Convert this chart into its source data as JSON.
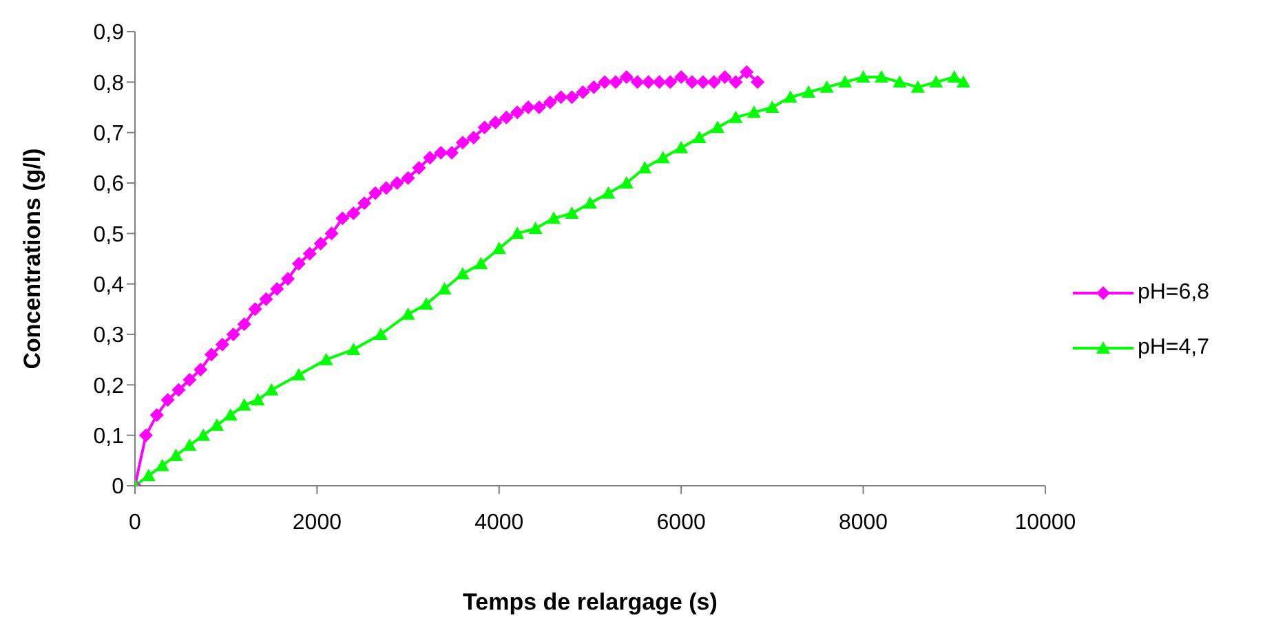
{
  "chart_data": {
    "type": "line",
    "xlabel": "Temps de relargage (s)",
    "ylabel": "Concentrations (g/l)",
    "xlim": [
      0,
      10000
    ],
    "xticks": [
      0,
      2000,
      4000,
      6000,
      8000,
      10000
    ],
    "ylim": [
      0,
      0.9
    ],
    "yticks": [
      0,
      {
        "value": 0.1,
        "label": "0,1"
      },
      {
        "value": 0.2,
        "label": "0,2"
      },
      {
        "value": 0.3,
        "label": "0,3"
      },
      {
        "value": 0.4,
        "label": "0,4"
      },
      {
        "value": 0.5,
        "label": "0,5"
      },
      {
        "value": 0.6,
        "label": "0,6"
      },
      {
        "value": 0.7,
        "label": "0,7"
      },
      {
        "value": 0.8,
        "label": "0,8"
      },
      {
        "value": 0.9,
        "label": "0,9"
      }
    ],
    "grid": false,
    "legend": "right",
    "series": [
      {
        "name": "pH=6,8",
        "color": "#ff00ff",
        "marker": "diamond",
        "x": [
          0,
          120,
          240,
          360,
          480,
          600,
          720,
          840,
          960,
          1080,
          1200,
          1320,
          1440,
          1560,
          1680,
          1800,
          1920,
          2040,
          2160,
          2280,
          2400,
          2520,
          2640,
          2760,
          2880,
          3000,
          3120,
          3240,
          3360,
          3480,
          3600,
          3720,
          3840,
          3960,
          4080,
          4200,
          4320,
          4440,
          4560,
          4680,
          4800,
          4920,
          5040,
          5160,
          5280,
          5400,
          5520,
          5640,
          5760,
          5880,
          6000,
          6120,
          6240,
          6360,
          6480,
          6600,
          6720,
          6840
        ],
        "values": [
          0,
          0.1,
          0.14,
          0.17,
          0.19,
          0.21,
          0.23,
          0.26,
          0.28,
          0.3,
          0.32,
          0.35,
          0.37,
          0.39,
          0.41,
          0.44,
          0.46,
          0.48,
          0.5,
          0.53,
          0.54,
          0.56,
          0.58,
          0.59,
          0.6,
          0.61,
          0.63,
          0.65,
          0.66,
          0.66,
          0.68,
          0.69,
          0.71,
          0.72,
          0.73,
          0.74,
          0.75,
          0.75,
          0.76,
          0.77,
          0.77,
          0.78,
          0.79,
          0.8,
          0.8,
          0.81,
          0.8,
          0.8,
          0.8,
          0.8,
          0.81,
          0.8,
          0.8,
          0.8,
          0.81,
          0.8,
          0.82,
          0.8
        ]
      },
      {
        "name": "pH=4,7",
        "color": "#00ff00",
        "marker": "triangle",
        "x": [
          0,
          150,
          300,
          450,
          600,
          750,
          900,
          1050,
          1200,
          1350,
          1500,
          1800,
          2100,
          2400,
          2700,
          3000,
          3200,
          3400,
          3600,
          3800,
          4000,
          4200,
          4400,
          4600,
          4800,
          5000,
          5200,
          5400,
          5600,
          5800,
          6000,
          6200,
          6400,
          6600,
          6800,
          7000,
          7200,
          7400,
          7600,
          7800,
          8000,
          8200,
          8400,
          8600,
          8800,
          9000,
          9100
        ],
        "values": [
          0,
          0.02,
          0.04,
          0.06,
          0.08,
          0.1,
          0.12,
          0.14,
          0.16,
          0.17,
          0.19,
          0.22,
          0.25,
          0.27,
          0.3,
          0.34,
          0.36,
          0.39,
          0.42,
          0.44,
          0.47,
          0.5,
          0.51,
          0.53,
          0.54,
          0.56,
          0.58,
          0.6,
          0.63,
          0.65,
          0.67,
          0.69,
          0.71,
          0.73,
          0.74,
          0.75,
          0.77,
          0.78,
          0.79,
          0.8,
          0.81,
          0.81,
          0.8,
          0.79,
          0.8,
          0.81,
          0.8
        ]
      }
    ]
  }
}
